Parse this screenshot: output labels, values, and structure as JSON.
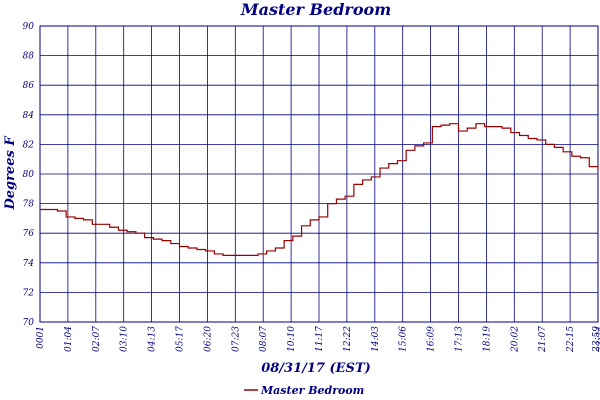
{
  "chart_data": {
    "type": "line",
    "title": "Master Bedroom",
    "xlabel": "08/31/17 (EST)",
    "ylabel": "Degrees F",
    "ylim": [
      70,
      90
    ],
    "yticks": [
      "70",
      "72",
      "74",
      "76",
      "78",
      "80",
      "82",
      "84",
      "86",
      "88",
      "90"
    ],
    "xticks": [
      "0001",
      "01:04",
      "02:07",
      "03:10",
      "04:13",
      "05:17",
      "06:20",
      "07:23",
      "08:07",
      "10:10",
      "11:17",
      "12:22",
      "14:03",
      "15:06",
      "16:09",
      "17:13",
      "18:19",
      "20:02",
      "21:07",
      "22:15",
      "23:59",
      "23:24"
    ],
    "grid": true,
    "legend_position": "bottom-center",
    "colors": {
      "line": "#990000",
      "grid": "#000080",
      "text": "#000080"
    },
    "series": [
      {
        "name": "Master Bedroom",
        "x": [
          0,
          1,
          2,
          3,
          4,
          5,
          6,
          7,
          8,
          9,
          10,
          11,
          12,
          13,
          14,
          15,
          16,
          17,
          18,
          19,
          20,
          21,
          22,
          23,
          24,
          25,
          26,
          27,
          28,
          29,
          30,
          31,
          32,
          33,
          34,
          35,
          36,
          37,
          38,
          39,
          40,
          41,
          42,
          43,
          44,
          45,
          46,
          47,
          48,
          49,
          50,
          51,
          52,
          53,
          54,
          55,
          56,
          57,
          58,
          59,
          60,
          61,
          62,
          63,
          64
        ],
        "values": [
          77.6,
          77.6,
          77.5,
          77.1,
          77.0,
          76.9,
          76.6,
          76.6,
          76.4,
          76.2,
          76.1,
          76.0,
          75.7,
          75.6,
          75.5,
          75.3,
          75.1,
          75.0,
          74.9,
          74.8,
          74.6,
          74.5,
          74.5,
          74.5,
          74.5,
          74.6,
          74.8,
          75.0,
          75.5,
          75.8,
          76.5,
          76.9,
          77.1,
          78.0,
          78.3,
          78.5,
          79.3,
          79.6,
          79.8,
          80.4,
          80.7,
          80.9,
          81.6,
          81.9,
          82.1,
          83.2,
          83.3,
          83.4,
          82.9,
          83.1,
          83.4,
          83.2,
          83.2,
          83.1,
          82.8,
          82.6,
          82.4,
          82.3,
          82.0,
          81.8,
          81.5,
          81.2,
          81.1,
          80.5,
          80.3
        ]
      }
    ]
  }
}
